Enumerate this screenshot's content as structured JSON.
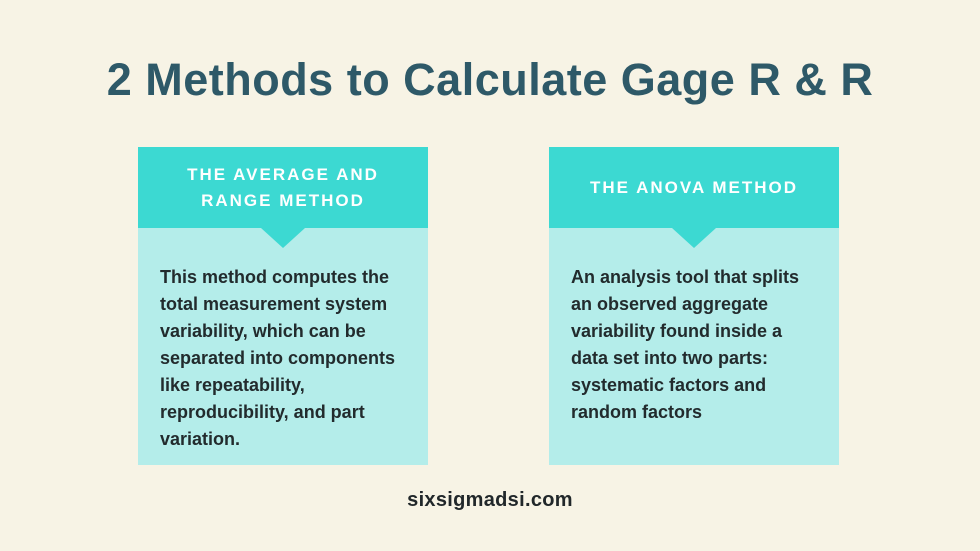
{
  "title": {
    "text": "2 Methods to Calculate Gage R & R"
  },
  "cards": [
    {
      "id": "average-range",
      "header": "THE AVERAGE AND\nRANGE METHOD",
      "body": "This method computes the\ntotal measurement system\nvariability, which can be\nseparated into components\nlike repeatability,\nreproducibility, and part\nvariation."
    },
    {
      "id": "anova",
      "header": "THE ANOVA METHOD",
      "body": "An analysis tool that splits\nan observed aggregate\nvariability found inside a\ndata set into two parts:\nsystematic factors and\nrandom factors"
    }
  ],
  "footer": {
    "site": "sixsigmadsi.com"
  },
  "colors": {
    "background": "#f7f3e5",
    "header_teal": "#3cd9d2",
    "body_teal": "#b4edea",
    "title_text": "#2e5968",
    "body_text": "#222b2d",
    "header_text": "#ffffff",
    "footer_text": "#21272a"
  }
}
